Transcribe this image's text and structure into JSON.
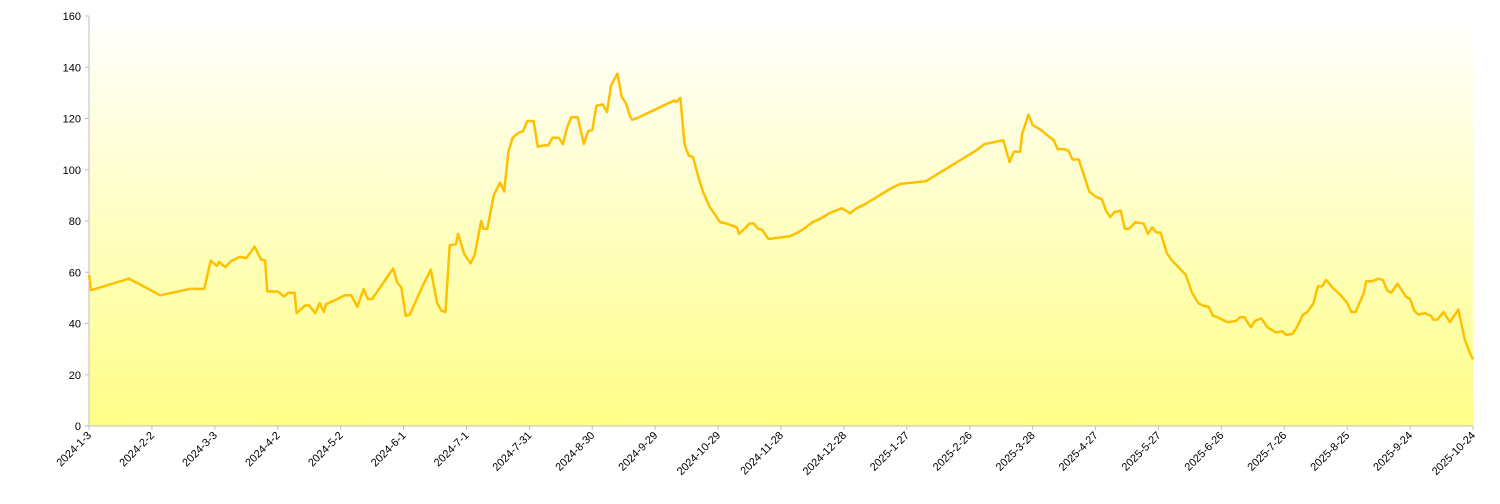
{
  "chart_data": {
    "type": "line",
    "grid": false,
    "xlim": [
      "2024-1-3",
      "2025-10-24"
    ],
    "xticks": [
      "2024-1-3",
      "2024-2-2",
      "2024-3-3",
      "2024-4-2",
      "2024-5-2",
      "2024-6-1",
      "2024-7-1",
      "2024-7-31",
      "2024-8-30",
      "2024-9-29",
      "2024-10-29",
      "2024-11-28",
      "2024-12-28",
      "2025-1-27",
      "2025-2-26",
      "2025-3-28",
      "2025-4-27",
      "2025-5-27",
      "2025-6-26",
      "2025-7-26",
      "2025-8-25",
      "2025-9-24",
      "2025-10-24"
    ],
    "ylim": [
      0,
      160
    ],
    "yticks": [
      0,
      20,
      40,
      60,
      80,
      100,
      120,
      140,
      160
    ],
    "x": [
      "2024-1-3",
      "2024-1-4",
      "2024-1-22",
      "2024-2-6",
      "2024-2-20",
      "2024-2-27",
      "2024-3-1",
      "2024-3-4",
      "2024-3-5",
      "2024-3-8",
      "2024-3-11",
      "2024-3-15",
      "2024-3-18",
      "2024-3-22",
      "2024-3-25",
      "2024-3-27",
      "2024-3-28",
      "2024-4-2",
      "2024-4-5",
      "2024-4-7",
      "2024-4-10",
      "2024-4-11",
      "2024-4-15",
      "2024-4-17",
      "2024-4-20",
      "2024-4-22",
      "2024-4-24",
      "2024-4-25",
      "2024-4-29",
      "2024-5-4",
      "2024-5-7",
      "2024-5-10",
      "2024-5-13",
      "2024-5-15",
      "2024-5-17",
      "2024-5-27",
      "2024-5-29",
      "2024-5-31",
      "2024-6-2",
      "2024-6-4",
      "2024-6-10",
      "2024-6-14",
      "2024-6-17",
      "2024-6-19",
      "2024-6-21",
      "2024-6-23",
      "2024-6-26",
      "2024-6-27",
      "2024-6-30",
      "2024-7-3",
      "2024-7-5",
      "2024-7-8",
      "2024-7-9",
      "2024-7-11",
      "2024-7-14",
      "2024-7-17",
      "2024-7-19",
      "2024-7-21",
      "2024-7-23",
      "2024-7-26",
      "2024-7-28",
      "2024-7-30",
      "2024-8-2",
      "2024-8-4",
      "2024-8-7",
      "2024-8-9",
      "2024-8-11",
      "2024-8-14",
      "2024-8-16",
      "2024-8-18",
      "2024-8-20",
      "2024-8-23",
      "2024-8-26",
      "2024-8-28",
      "2024-8-30",
      "2024-9-1",
      "2024-9-4",
      "2024-9-6",
      "2024-9-8",
      "2024-9-11",
      "2024-9-13",
      "2024-9-15",
      "2024-9-17",
      "2024-9-18",
      "2024-9-20",
      "2024-10-8",
      "2024-10-9",
      "2024-10-11",
      "2024-10-13",
      "2024-10-15",
      "2024-10-17",
      "2024-10-20",
      "2024-10-22",
      "2024-10-25",
      "2024-10-30",
      "2024-11-2",
      "2024-11-7",
      "2024-11-8",
      "2024-11-10",
      "2024-11-13",
      "2024-11-15",
      "2024-11-17",
      "2024-11-19",
      "2024-11-22",
      "2024-12-2",
      "2024-12-6",
      "2024-12-9",
      "2024-12-13",
      "2024-12-17",
      "2024-12-21",
      "2024-12-27",
      "2024-12-31",
      "2025-1-3",
      "2025-1-7",
      "2025-1-11",
      "2025-1-16",
      "2025-1-20",
      "2025-1-24",
      "2025-2-5",
      "2025-2-9",
      "2025-2-14",
      "2025-2-19",
      "2025-2-24",
      "2025-3-1",
      "2025-3-5",
      "2025-3-14",
      "2025-3-17",
      "2025-3-19",
      "2025-3-22",
      "2025-3-23",
      "2025-3-26",
      "2025-3-28",
      "2025-4-1",
      "2025-4-4",
      "2025-4-7",
      "2025-4-9",
      "2025-4-12",
      "2025-4-14",
      "2025-4-16",
      "2025-4-19",
      "2025-4-21",
      "2025-4-24",
      "2025-4-27",
      "2025-4-30",
      "2025-5-2",
      "2025-5-4",
      "2025-5-6",
      "2025-5-9",
      "2025-5-11",
      "2025-5-13",
      "2025-5-16",
      "2025-5-20",
      "2025-5-22",
      "2025-5-24",
      "2025-5-26",
      "2025-5-28",
      "2025-5-31",
      "2025-6-2",
      "2025-6-9",
      "2025-6-12",
      "2025-6-15",
      "2025-6-17",
      "2025-6-20",
      "2025-6-22",
      "2025-6-24",
      "2025-6-29",
      "2025-7-3",
      "2025-7-5",
      "2025-7-7",
      "2025-7-10",
      "2025-7-12",
      "2025-7-15",
      "2025-7-18",
      "2025-7-22",
      "2025-7-25",
      "2025-7-27",
      "2025-7-30",
      "2025-8-1",
      "2025-8-4",
      "2025-8-6",
      "2025-8-9",
      "2025-8-11",
      "2025-8-13",
      "2025-8-15",
      "2025-8-18",
      "2025-8-22",
      "2025-8-25",
      "2025-8-27",
      "2025-8-29",
      "2025-9-2",
      "2025-9-3",
      "2025-9-6",
      "2025-9-9",
      "2025-9-11",
      "2025-9-13",
      "2025-9-15",
      "2025-9-18",
      "2025-9-22",
      "2025-9-24",
      "2025-9-26",
      "2025-9-28",
      "2025-10-1",
      "2025-10-4",
      "2025-10-5",
      "2025-10-7",
      "2025-10-10",
      "2025-10-13",
      "2025-10-17",
      "2025-10-20",
      "2025-10-22",
      "2025-10-24"
    ],
    "series": [
      {
        "color": "#ffc000",
        "values": [
          59,
          53,
          57.5,
          51,
          53.5,
          53.5,
          64.5,
          62.5,
          64,
          62,
          64.5,
          66,
          65.5,
          70,
          65,
          64.5,
          52.5,
          52.5,
          50.5,
          52,
          52,
          44,
          47,
          47,
          44,
          48,
          44.5,
          47.5,
          49,
          51,
          51,
          46.5,
          53.5,
          49.5,
          49.5,
          61.5,
          56,
          54,
          43,
          43.5,
          54.5,
          61,
          48,
          45,
          44.5,
          70.5,
          71,
          75,
          67,
          63.5,
          67,
          80,
          77,
          77,
          90,
          95,
          91.5,
          107,
          112.5,
          114.5,
          115,
          119,
          119,
          109,
          109.5,
          109.5,
          112.5,
          112.5,
          110,
          116.5,
          120.5,
          120.5,
          110,
          115,
          115.5,
          125,
          125.5,
          122.5,
          133,
          137.5,
          128.5,
          126,
          121,
          119.5,
          120,
          127,
          126.5,
          128,
          110,
          105.5,
          105,
          96,
          91,
          85.5,
          79.5,
          79,
          77.5,
          75,
          76.5,
          79,
          79,
          77,
          76.5,
          73,
          74,
          75.5,
          77,
          79.5,
          81,
          83,
          85,
          83,
          85,
          86.5,
          88.5,
          91,
          93,
          94.5,
          95.5,
          97.5,
          100,
          102.5,
          105,
          107.5,
          110,
          111.5,
          103,
          107,
          107,
          114,
          121.5,
          117.5,
          115.5,
          113.5,
          111.5,
          108,
          108,
          107.5,
          104,
          104,
          99,
          91.5,
          89.5,
          88.5,
          84,
          81.5,
          83.5,
          84,
          77,
          77,
          79.5,
          79,
          75,
          77.5,
          75.5,
          75.5,
          67.5,
          65,
          59,
          52,
          48,
          47,
          46.5,
          43,
          42.5,
          40.5,
          41,
          42.5,
          42.5,
          38.5,
          41,
          42,
          38.5,
          36.5,
          37,
          35.5,
          36,
          38.5,
          43.5,
          44.5,
          48,
          54.5,
          54.5,
          57,
          54,
          51,
          48,
          44.5,
          44.5,
          52,
          56.5,
          56.5,
          57.5,
          57,
          53,
          52,
          55.5,
          50.5,
          49.5,
          45,
          43.5,
          44,
          43,
          41.5,
          41.5,
          44.5,
          40.5,
          45.5,
          34,
          29.5,
          26
        ]
      }
    ]
  }
}
